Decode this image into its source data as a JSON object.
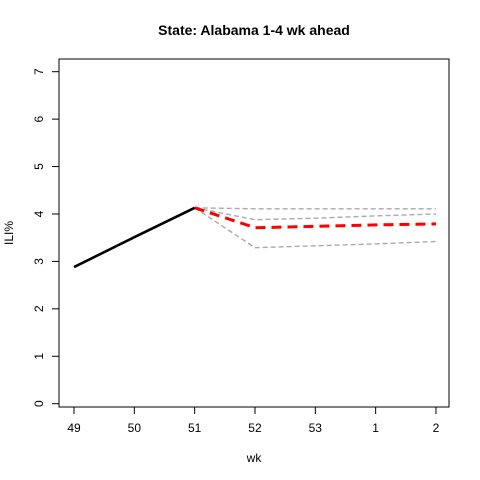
{
  "chart_data": {
    "type": "line",
    "title": "State: Alabama 1-4 wk ahead",
    "xlabel": "wk",
    "ylabel": "ILI%",
    "categories": [
      "49",
      "50",
      "51",
      "52",
      "53",
      "1",
      "2"
    ],
    "ylim": [
      0,
      7
    ],
    "yticks": [
      0,
      1,
      2,
      3,
      4,
      5,
      6,
      7
    ],
    "grid": false,
    "legend": "none",
    "series": [
      {
        "role": "observed",
        "color": "#000000",
        "style": "solid",
        "points": [
          [
            0,
            2.88
          ],
          [
            1,
            3.51
          ],
          [
            2,
            4.13
          ]
        ]
      },
      {
        "role": "forecast",
        "color": "#ff0000",
        "style": "dashed",
        "points": [
          [
            2,
            4.13
          ],
          [
            3,
            3.71
          ],
          [
            4,
            3.74
          ],
          [
            5,
            3.77
          ],
          [
            6,
            3.79
          ]
        ]
      },
      {
        "role": "upper-bound",
        "color": "#aaaaaa",
        "style": "dashed",
        "points": [
          [
            2,
            4.13
          ],
          [
            3,
            4.11
          ],
          [
            4,
            4.11
          ],
          [
            5,
            4.11
          ],
          [
            6,
            4.11
          ]
        ]
      },
      {
        "role": "upper-band",
        "color": "#aaaaaa",
        "style": "dashed",
        "points": [
          [
            2,
            4.13
          ],
          [
            3,
            3.88
          ],
          [
            4,
            3.91
          ],
          [
            5,
            3.96
          ],
          [
            6,
            4.0
          ]
        ]
      },
      {
        "role": "lower-bound",
        "color": "#aaaaaa",
        "style": "dashed",
        "points": [
          [
            2,
            4.13
          ],
          [
            3,
            3.29
          ],
          [
            4,
            3.33
          ],
          [
            5,
            3.37
          ],
          [
            6,
            3.42
          ]
        ]
      }
    ]
  }
}
